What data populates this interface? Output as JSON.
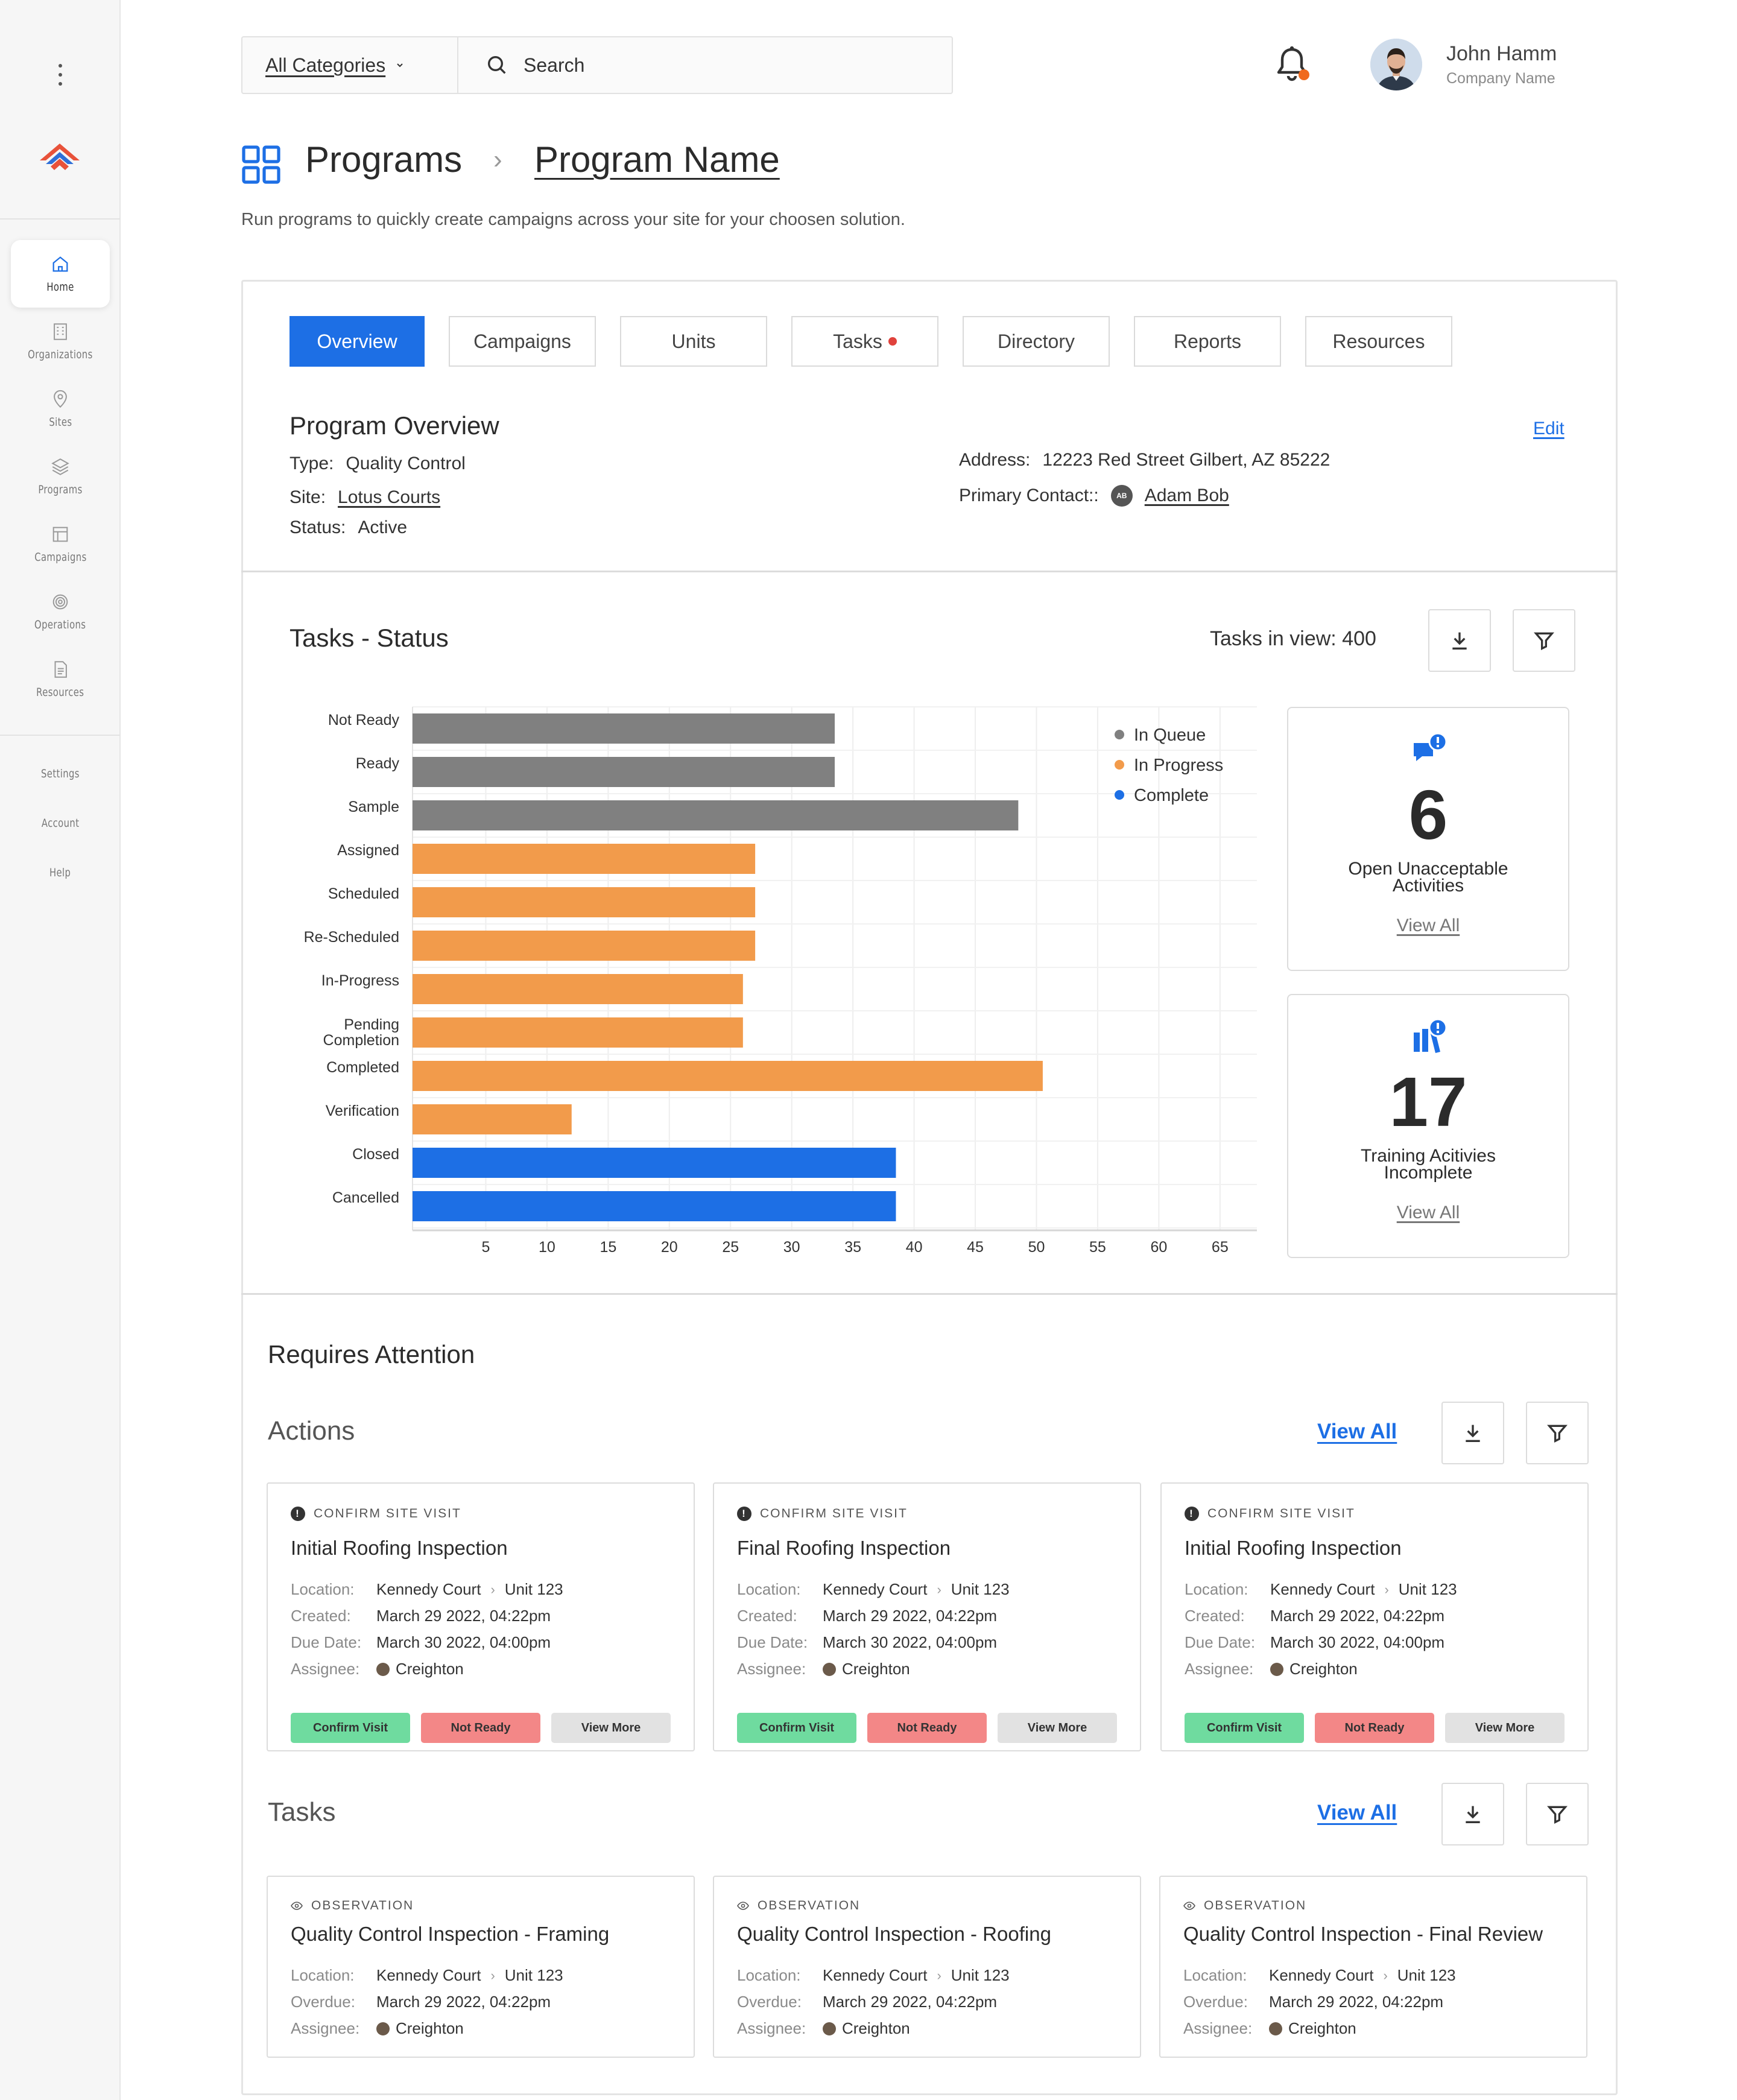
{
  "header": {
    "category_label": "All Categories",
    "search_placeholder": "Search",
    "user_name": "John Hamm",
    "user_company": "Company Name"
  },
  "sidebar": {
    "items": [
      {
        "label": "Home",
        "icon": "home-icon",
        "active": true
      },
      {
        "label": "Organizations",
        "icon": "building-icon"
      },
      {
        "label": "Sites",
        "icon": "map-pin-icon"
      },
      {
        "label": "Programs",
        "icon": "layers-icon"
      },
      {
        "label": "Campaigns",
        "icon": "layout-icon"
      },
      {
        "label": "Operations",
        "icon": "target-icon"
      },
      {
        "label": "Resources",
        "icon": "document-icon"
      }
    ],
    "footer_items": [
      "Settings",
      "Account",
      "Help"
    ]
  },
  "breadcrumb": {
    "root": "Programs",
    "separator": "›",
    "current": "Program Name"
  },
  "description": "Run programs to quickly create campaigns across your site for your choosen solution.",
  "tabs": [
    {
      "label": "Overview",
      "active": true
    },
    {
      "label": "Campaigns"
    },
    {
      "label": "Units"
    },
    {
      "label": "Tasks",
      "has_dot": true
    },
    {
      "label": "Directory"
    },
    {
      "label": "Reports"
    },
    {
      "label": "Resources"
    }
  ],
  "overview": {
    "title": "Program Overview",
    "edit_label": "Edit",
    "type_label": "Type:",
    "type_value": "Quality Control",
    "site_label": "Site:",
    "site_value": "Lotus Courts",
    "status_label": "Status:",
    "status_value": "Active",
    "address_label": "Address:",
    "address_value": "12223 Red Street Gilbert, AZ 85222",
    "contact_label": "Primary Contact::",
    "contact_initials": "AB",
    "contact_value": "Adam Bob"
  },
  "tasks_status": {
    "title": "Tasks - Status",
    "in_view": "Tasks in view: 400"
  },
  "chart_data": {
    "type": "bar",
    "orientation": "horizontal",
    "categories": [
      "Not Ready",
      "Ready",
      "Sample",
      "Assigned",
      "Scheduled",
      "Re-Scheduled",
      "In-Progress",
      "Pending Completion",
      "Completed",
      "Verification",
      "Closed",
      "Cancelled"
    ],
    "values": [
      34.5,
      34.5,
      49.5,
      28,
      28,
      28,
      27,
      27,
      51.5,
      13,
      39.5,
      39.5
    ],
    "groups": [
      "In Queue",
      "In Queue",
      "In Queue",
      "In Progress",
      "In Progress",
      "In Progress",
      "In Progress",
      "In Progress",
      "In Progress",
      "In Progress",
      "Complete",
      "Complete"
    ],
    "legend": [
      {
        "name": "In Queue",
        "color": "#808080"
      },
      {
        "name": "In Progress",
        "color": "#f29b4b"
      },
      {
        "name": "Complete",
        "color": "#1d6fe5"
      }
    ],
    "legend_position": "top-right",
    "xticks": [
      5,
      10,
      15,
      20,
      25,
      30,
      35,
      40,
      45,
      50,
      55,
      60,
      65
    ],
    "xlim": [
      0,
      69
    ],
    "grid": true
  },
  "kpis": [
    {
      "value": "6",
      "label_line1": "Open Unacceptable",
      "label_line2": "Activities",
      "link": "View All",
      "icon": "chat-alert-icon"
    },
    {
      "value": "17",
      "label_line1": "Training Acitivies",
      "label_line2": "Incomplete",
      "link": "View All",
      "icon": "books-alert-icon"
    }
  ],
  "attention": {
    "title": "Requires Attention",
    "actions_title": "Actions",
    "tasks_title": "Tasks",
    "view_all": "View All",
    "actions": [
      {
        "kind": "CONFIRM SITE VISIT",
        "title": "Initial Roofing Inspection",
        "location_label": "Location:",
        "location": "Kennedy Court",
        "unit": "Unit 123",
        "created_label": "Created:",
        "created": "March 29 2022, 04:22pm",
        "due_label": "Due Date:",
        "due": "March 30 2022, 04:00pm",
        "assignee_label": "Assignee:",
        "assignee": "Creighton",
        "btn_confirm": "Confirm Visit",
        "btn_not_ready": "Not Ready",
        "btn_more": "View More"
      },
      {
        "kind": "CONFIRM SITE VISIT",
        "title": "Final Roofing Inspection",
        "location_label": "Location:",
        "location": "Kennedy Court",
        "unit": "Unit 123",
        "created_label": "Created:",
        "created": "March 29 2022, 04:22pm",
        "due_label": "Due Date:",
        "due": "March 30 2022, 04:00pm",
        "assignee_label": "Assignee:",
        "assignee": "Creighton",
        "btn_confirm": "Confirm Visit",
        "btn_not_ready": "Not Ready",
        "btn_more": "View More"
      },
      {
        "kind": "CONFIRM SITE VISIT",
        "title": "Initial Roofing Inspection",
        "location_label": "Location:",
        "location": "Kennedy Court",
        "unit": "Unit 123",
        "created_label": "Created:",
        "created": "March 29 2022, 04:22pm",
        "due_label": "Due Date:",
        "due": "March 30 2022, 04:00pm",
        "assignee_label": "Assignee:",
        "assignee": "Creighton",
        "btn_confirm": "Confirm Visit",
        "btn_not_ready": "Not Ready",
        "btn_more": "View More"
      }
    ],
    "tasks": [
      {
        "kind": "OBSERVATION",
        "title": "Quality Control Inspection - Framing",
        "location_label": "Location:",
        "location": "Kennedy Court",
        "unit": "Unit 123",
        "overdue_label": "Overdue:",
        "overdue": "March 29 2022, 04:22pm",
        "assignee_label": "Assignee:",
        "assignee": "Creighton"
      },
      {
        "kind": "OBSERVATION",
        "title": "Quality Control Inspection - Roofing",
        "location_label": "Location:",
        "location": "Kennedy Court",
        "unit": "Unit 123",
        "overdue_label": "Overdue:",
        "overdue": "March 29 2022, 04:22pm",
        "assignee_label": "Assignee:",
        "assignee": "Creighton"
      },
      {
        "kind": "OBSERVATION",
        "title": "Quality Control Inspection - Final Review",
        "location_label": "Location:",
        "location": "Kennedy Court",
        "unit": "Unit 123",
        "overdue_label": "Overdue:",
        "overdue": "March 29 2022, 04:22pm",
        "assignee_label": "Assignee:",
        "assignee": "Creighton"
      }
    ]
  }
}
